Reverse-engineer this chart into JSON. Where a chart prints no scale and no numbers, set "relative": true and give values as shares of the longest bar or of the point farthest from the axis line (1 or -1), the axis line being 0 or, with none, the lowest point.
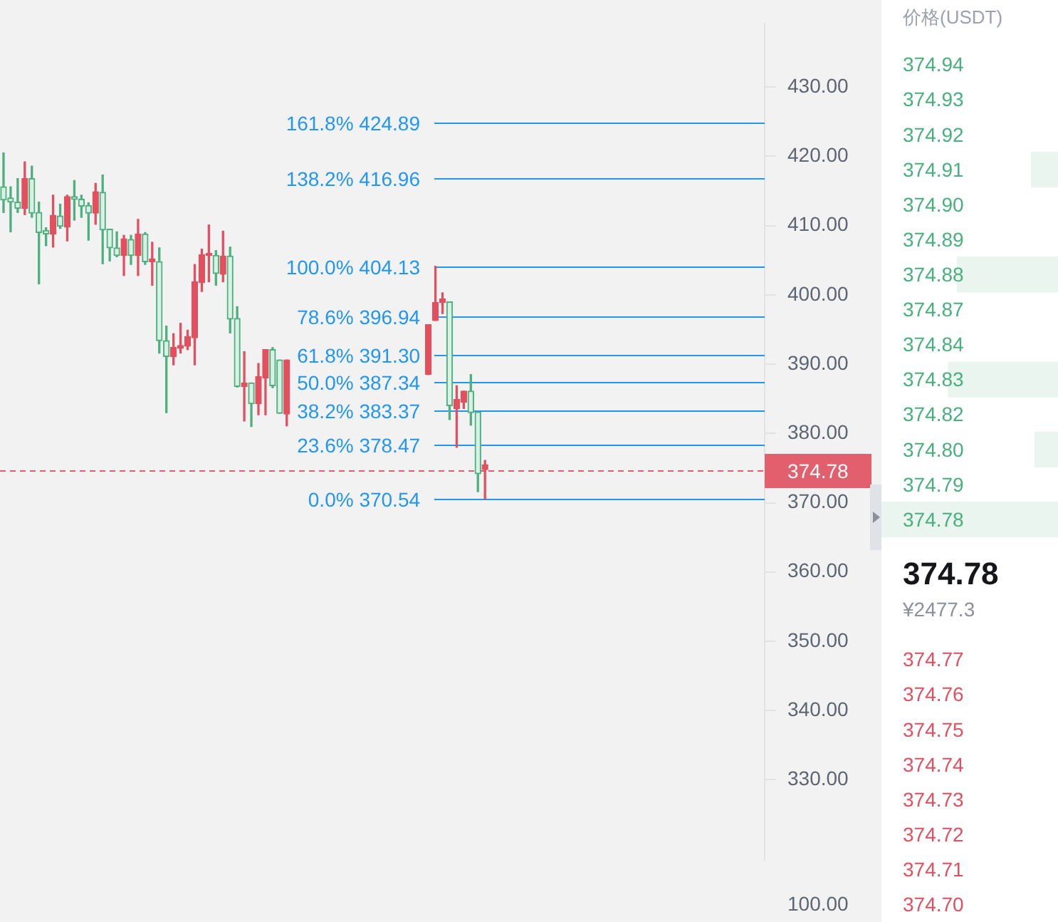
{
  "chart_data": [
    {
      "type": "candlestick",
      "categories": [
        null,
        null,
        null,
        null,
        null,
        null,
        null,
        null,
        null,
        null,
        null,
        null,
        null,
        null,
        null,
        null,
        null,
        null,
        null,
        null,
        null,
        null,
        null,
        null,
        null,
        null,
        null,
        null,
        null,
        null,
        null,
        null,
        null,
        null,
        null,
        null,
        null,
        null,
        null,
        null,
        null,
        null,
        null,
        null,
        null,
        null,
        null,
        null,
        null,
        null,
        null,
        null,
        null,
        null,
        null,
        null,
        null,
        null,
        null,
        null,
        null,
        null,
        null,
        null,
        null,
        null,
        null,
        null,
        null,
        null,
        null,
        null,
        null,
        null,
        null,
        null,
        null,
        null,
        null,
        null,
        null,
        null,
        null,
        null,
        null,
        null,
        null,
        null,
        null,
        null,
        null,
        null,
        null,
        null,
        null,
        null,
        null,
        null,
        null,
        null,
        null,
        null,
        null,
        null,
        null,
        null,
        null,
        null
      ],
      "ohlc": [
        [
          413.7,
          420.5,
          411.9,
          415.6
        ],
        [
          413.4,
          415.6,
          409.1,
          414.0
        ],
        [
          412.5,
          416.8,
          411.9,
          413.4
        ],
        [
          416.8,
          419.2,
          411.6,
          412.5
        ],
        [
          411.8,
          418.6,
          411.2,
          416.8
        ],
        [
          409.0,
          413.4,
          401.6,
          411.9
        ],
        [
          408.8,
          409.7,
          407.1,
          409.3
        ],
        [
          411.5,
          414.4,
          406.9,
          408.8
        ],
        [
          409.9,
          413.1,
          409.6,
          411.4
        ],
        [
          414.2,
          414.4,
          407.8,
          409.8
        ],
        [
          413.8,
          416.5,
          410.8,
          414.2
        ],
        [
          412.8,
          414.4,
          411.2,
          413.8
        ],
        [
          411.8,
          413.3,
          407.9,
          412.9
        ],
        [
          414.9,
          416.1,
          410.2,
          411.8
        ],
        [
          409.4,
          417.3,
          404.5,
          414.8
        ],
        [
          406.8,
          409.5,
          404.9,
          409.5
        ],
        [
          405.7,
          409.1,
          405.5,
          406.8
        ],
        [
          408.1,
          408.6,
          402.8,
          405.7
        ],
        [
          405.7,
          408.6,
          404.4,
          408.0
        ],
        [
          408.8,
          410.9,
          402.8,
          405.7
        ],
        [
          404.8,
          409.0,
          404.4,
          408.8
        ],
        [
          405.2,
          407.6,
          401.4,
          404.8
        ],
        [
          393.4,
          406.8,
          391.6,
          404.8
        ],
        [
          391.1,
          395.5,
          383.0,
          393.4
        ],
        [
          392.4,
          394.4,
          389.9,
          391.1
        ],
        [
          392.7,
          395.9,
          391.6,
          392.3
        ],
        [
          394.0,
          394.9,
          392.1,
          392.6
        ],
        [
          401.9,
          404.4,
          389.9,
          393.8
        ],
        [
          405.8,
          406.6,
          400.5,
          401.8
        ],
        [
          406.0,
          410.1,
          401.9,
          405.7
        ],
        [
          403.1,
          406.4,
          401.4,
          405.7
        ],
        [
          405.6,
          409.2,
          401.9,
          403.0
        ],
        [
          396.5,
          406.9,
          394.5,
          405.6
        ],
        [
          386.8,
          398.3,
          386.7,
          396.6
        ],
        [
          387.3,
          391.8,
          381.8,
          386.8
        ],
        [
          384.3,
          387.3,
          381.0,
          387.3
        ],
        [
          388.2,
          390.1,
          382.7,
          384.3
        ],
        [
          392.1,
          392.1,
          382.7,
          388.0
        ],
        [
          386.9,
          392.4,
          386.6,
          392.1
        ],
        [
          382.9,
          390.6,
          382.9,
          390.6
        ],
        [
          390.6,
          390.6,
          381.1,
          382.8
        ],
        null,
        null,
        null,
        null,
        null,
        null,
        null,
        null,
        null,
        null,
        null,
        null,
        null,
        null,
        null,
        null,
        null,
        null,
        null,
        [
          395.7,
          395.7,
          388.5,
          388.5
        ],
        [
          398.9,
          404.13,
          396.3,
          396.3
        ],
        [
          399.4,
          400.3,
          397.3,
          398.9
        ],
        [
          384.0,
          399.0,
          382.0,
          399.0
        ],
        [
          384.9,
          386.9,
          378.0,
          383.6
        ],
        [
          386.1,
          386.1,
          383.6,
          384.5
        ],
        [
          383.0,
          388.5,
          381.2,
          386.1
        ],
        [
          374.2,
          383.1,
          371.6,
          383.1
        ],
        [
          375.5,
          376.1,
          370.54,
          374.78
        ],
        null,
        null,
        null,
        null,
        null,
        null,
        null,
        null,
        null,
        null,
        null,
        null,
        null,
        null,
        null,
        null,
        null,
        null,
        null,
        null,
        null,
        null,
        null,
        null,
        null,
        null,
        null,
        null,
        null,
        null,
        null,
        null,
        null,
        null,
        null,
        null,
        null,
        null,
        null
      ],
      "ylim": [
        318.4,
        439.2
      ],
      "yticks": [
        {
          "value": 330,
          "label": "330.00"
        },
        {
          "value": 340,
          "label": "340.00"
        },
        {
          "value": 350,
          "label": "350.00"
        },
        {
          "value": 360,
          "label": "360.00"
        },
        {
          "value": 370,
          "label": "370.00"
        },
        {
          "value": 380,
          "label": "380.00"
        },
        {
          "value": 390,
          "label": "390.00"
        },
        {
          "value": 400,
          "label": "400.00"
        },
        {
          "value": 410,
          "label": "410.00"
        },
        {
          "value": 420,
          "label": "420.00"
        },
        {
          "value": 430,
          "label": "430.00"
        }
      ],
      "tick_labels": "y",
      "grid": false,
      "ref_lines": [
        {
          "axis": "y",
          "value": 424.89,
          "label": "161.8% 424.89",
          "color": "#2196f3",
          "line_style": "solid"
        },
        {
          "axis": "y",
          "value": 416.96,
          "label": "138.2% 416.96",
          "color": "#2196f3",
          "line_style": "solid"
        },
        {
          "axis": "y",
          "value": 404.13,
          "label": "100.0% 404.13",
          "color": "#2196f3",
          "line_style": "solid"
        },
        {
          "axis": "y",
          "value": 396.94,
          "label": "78.6% 396.94",
          "color": "#2196f3",
          "line_style": "solid"
        },
        {
          "axis": "y",
          "value": 391.3,
          "label": "61.8% 391.30",
          "color": "#2196f3",
          "line_style": "solid"
        },
        {
          "axis": "y",
          "value": 387.34,
          "label": "50.0% 387.34",
          "color": "#2196f3",
          "line_style": "solid"
        },
        {
          "axis": "y",
          "value": 383.37,
          "label": "38.2% 383.37",
          "color": "#2196f3",
          "line_style": "solid"
        },
        {
          "axis": "y",
          "value": 378.47,
          "label": "23.6% 378.47",
          "color": "#2196f3",
          "line_style": "solid"
        },
        {
          "axis": "y",
          "value": 370.54,
          "label": "0.0% 370.54",
          "color": "#2196f3",
          "line_style": "solid"
        },
        {
          "axis": "y",
          "value": 374.78,
          "label": "374.78",
          "color": "#e2606d",
          "line_style": "dashed"
        }
      ]
    },
    {
      "type": "other",
      "annotations": [
        "100.00"
      ]
    },
    {
      "type": "bar",
      "orientation": "horizontal",
      "relative": true,
      "title": "价格(USDT)",
      "categories": [
        "374.94",
        "374.93",
        "374.92",
        "374.91",
        "374.90",
        "374.89",
        "374.88",
        "374.87",
        "374.84",
        "374.83",
        "374.82",
        "374.80",
        "374.79",
        "374.78",
        null,
        null,
        null,
        "374.77",
        "374.76",
        "374.75",
        "374.74",
        "374.73",
        "374.72",
        "374.71",
        "374.70"
      ],
      "values": [
        null,
        null,
        null,
        0.15,
        null,
        null,
        0.57,
        null,
        null,
        0.62,
        null,
        0.13,
        null,
        1,
        null,
        null,
        null,
        null,
        null,
        null,
        null,
        null,
        null,
        null,
        null
      ],
      "color": "#e9f5ee",
      "annotations": [
        "374.78",
        "¥2477.3"
      ]
    }
  ]
}
